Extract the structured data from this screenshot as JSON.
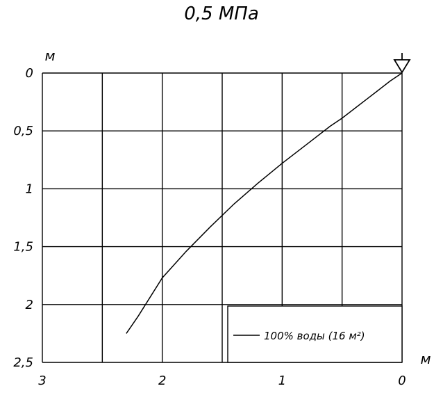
{
  "chart_data": {
    "type": "line",
    "title": "0,5 МПа",
    "x_unit": "м",
    "y_unit": "м",
    "xlim": [
      3,
      0
    ],
    "ylim": [
      0,
      2.5
    ],
    "x_ticks": [
      "3",
      "2",
      "1",
      "0"
    ],
    "y_ticks": [
      "0",
      "0,5",
      "1",
      "1,5",
      "2",
      "2,5"
    ],
    "x_grid": [
      3,
      2.5,
      2,
      1.5,
      1,
      0.5,
      0
    ],
    "y_grid": [
      0,
      0.5,
      1,
      1.5,
      2,
      2.5
    ],
    "grid": true,
    "legend_position": "bottom-right",
    "marker": "arrow-triangle",
    "marker_x": 0,
    "series": [
      {
        "name": "100% воды (16 м²)",
        "color": "#000000",
        "x": [
          0,
          0.1,
          0.2,
          0.3,
          0.4,
          0.5,
          0.6,
          0.8,
          1.0,
          1.2,
          1.4,
          1.6,
          1.8,
          2.0,
          2.2,
          2.3
        ],
        "y": [
          0,
          0.07,
          0.15,
          0.23,
          0.31,
          0.39,
          0.46,
          0.62,
          0.78,
          0.95,
          1.13,
          1.33,
          1.54,
          1.77,
          2.1,
          2.25
        ]
      }
    ]
  }
}
